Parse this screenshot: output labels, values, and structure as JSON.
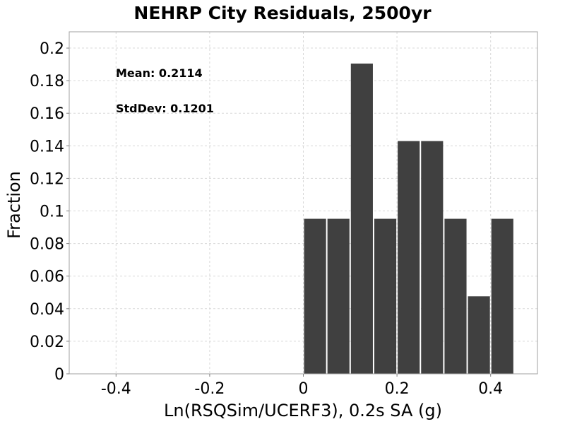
{
  "chart_data": {
    "type": "bar",
    "title": "NEHRP City Residuals, 2500yr",
    "xlabel": "Ln(RSQSim/UCERF3), 0.2s SA (g)",
    "ylabel": "Fraction",
    "xlim": [
      -0.5,
      0.5
    ],
    "ylim": [
      0,
      0.21
    ],
    "x_ticks": [
      -0.4,
      -0.2,
      0,
      0.2,
      0.4
    ],
    "x_tick_labels": [
      "-0.4",
      "-0.2",
      "0",
      "0.2",
      "0.4"
    ],
    "y_ticks": [
      0,
      0.02,
      0.04,
      0.06,
      0.08,
      0.1,
      0.12,
      0.14,
      0.16,
      0.18,
      0.2
    ],
    "y_tick_labels": [
      "0",
      "0.02",
      "0.04",
      "0.06",
      "0.08",
      "0.1",
      "0.12",
      "0.14",
      "0.16",
      "0.18",
      "0.2"
    ],
    "bin_width": 0.05,
    "bin_centers": [
      0.025,
      0.075,
      0.125,
      0.175,
      0.225,
      0.275,
      0.325,
      0.375,
      0.425
    ],
    "values": [
      0.0952,
      0.0952,
      0.1905,
      0.0952,
      0.1429,
      0.1429,
      0.0952,
      0.0476,
      0.0952
    ],
    "bar_color": "#404040",
    "grid": true,
    "annotations": [
      {
        "label": "Mean: 0.2114"
      },
      {
        "label": "StdDev: 0.1201"
      }
    ]
  }
}
